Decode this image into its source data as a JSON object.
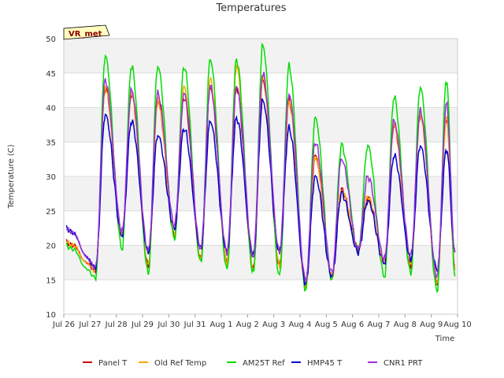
{
  "chart_data": {
    "type": "line",
    "title": "Temperatures",
    "xlabel": "Time",
    "ylabel": "Temperature (C)",
    "station_label": "VR_met",
    "ylim": [
      10,
      50
    ],
    "xlim": [
      0,
      15
    ],
    "x_tick_labels": [
      "Jul 26",
      "Jul 27",
      "Jul 28",
      "Jul 29",
      "Jul 30",
      "Jul 31",
      "Aug 1",
      "Aug 2",
      "Aug 3",
      "Aug 4",
      "Aug 5",
      "Aug 6",
      "Aug 7",
      "Aug 8",
      "Aug 9",
      "Aug 10"
    ],
    "y_ticks": [
      10,
      15,
      20,
      25,
      30,
      35,
      40,
      45,
      50
    ],
    "grid": true,
    "legend_position": "bottom",
    "colors": {
      "panel": "#cc0000",
      "oldref": "#ffa500",
      "am25t": "#00dd00",
      "hmp45": "#0000cc",
      "cnr1": "#9b30d9",
      "band": "#f2f2f2",
      "grid": "#dddddd",
      "station_bg": "#ffffc0"
    },
    "series": [
      {
        "name": "Panel T",
        "key": "panel",
        "daily_max": [
          43,
          42,
          41,
          41.5,
          43,
          43,
          44,
          41,
          33,
          28,
          27,
          37.5,
          39,
          38.5
        ],
        "daily_min": [
          16.5,
          21.5,
          17,
          21.5,
          18,
          17.5,
          16.5,
          17,
          14,
          15.5,
          19.5,
          17.5,
          17,
          14.5
        ]
      },
      {
        "name": "Old Ref Temp",
        "key": "oldref",
        "daily_max": [
          43,
          42,
          41,
          43,
          44,
          46,
          44.5,
          41,
          33,
          28,
          27,
          37.5,
          39,
          38.5
        ],
        "daily_min": [
          16.5,
          21.5,
          17,
          21.5,
          18,
          17.5,
          16.5,
          17,
          14,
          15.5,
          19.5,
          17.5,
          17,
          14.5
        ]
      },
      {
        "name": "AM25T Ref",
        "key": "am25t",
        "daily_max": [
          47.5,
          46,
          46,
          46,
          47,
          47,
          49,
          46,
          38.5,
          34.5,
          34.5,
          41.5,
          43,
          44
        ],
        "daily_min": [
          15.5,
          19.5,
          16,
          21,
          17.5,
          16.5,
          16,
          15.5,
          13.5,
          15,
          19,
          15.5,
          16,
          13.5
        ]
      },
      {
        "name": "HMP45 T",
        "key": "hmp45",
        "daily_max": [
          39,
          38,
          36,
          37,
          38,
          38.5,
          41,
          37,
          30,
          27.5,
          26.5,
          33,
          34.5,
          34
        ],
        "daily_min": [
          17,
          21.5,
          19,
          22.5,
          19.5,
          19,
          18.5,
          19,
          14.5,
          15.5,
          19,
          17.5,
          18,
          16.5
        ]
      },
      {
        "name": "CNR1 PRT",
        "key": "cnr1",
        "daily_max": [
          44,
          42.5,
          42,
          42,
          43,
          43,
          45,
          42,
          35,
          32.5,
          30,
          38,
          39.5,
          40.5
        ],
        "daily_min": [
          17,
          22,
          19,
          23,
          19.5,
          19,
          18.5,
          19,
          15,
          16,
          19.5,
          18,
          18.5,
          15.5
        ]
      }
    ],
    "start_value": {
      "panel": 20.5,
      "oldref": 20.5,
      "am25t": 20,
      "hmp45": 22.5,
      "cnr1": 22.5
    },
    "end_value": {
      "panel": 16.5,
      "oldref": 16.5,
      "am25t": 15.5,
      "hmp45": 19,
      "cnr1": 19
    }
  }
}
